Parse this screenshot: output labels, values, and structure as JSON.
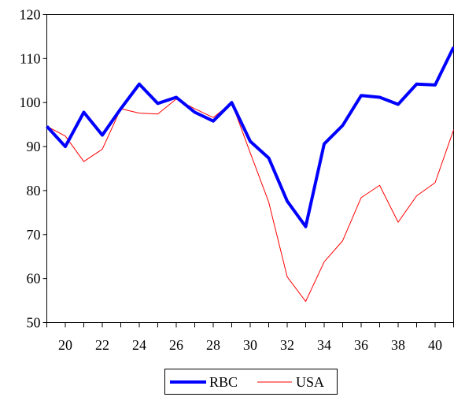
{
  "chart_data": {
    "type": "line",
    "title": "",
    "xlabel": "",
    "ylabel": "",
    "x": [
      19,
      20,
      21,
      22,
      23,
      24,
      25,
      26,
      27,
      28,
      29,
      30,
      31,
      32,
      33,
      34,
      35,
      36,
      37,
      38,
      39,
      40,
      41
    ],
    "xlim": [
      19,
      41
    ],
    "ylim": [
      50,
      120
    ],
    "xticks": [
      20,
      22,
      24,
      26,
      28,
      30,
      32,
      34,
      36,
      38,
      40
    ],
    "xtick_labels": [
      "20",
      "22",
      "24",
      "26",
      "28",
      "30",
      "32",
      "34",
      "36",
      "38",
      "40"
    ],
    "yticks": [
      50,
      60,
      70,
      80,
      90,
      100,
      110,
      120
    ],
    "ytick_labels": [
      "50",
      "60",
      "70",
      "80",
      "90",
      "100",
      "110",
      "120"
    ],
    "grid": false,
    "legend_position": "bottom-center",
    "series": [
      {
        "name": "RBC",
        "color": "#0000ff",
        "values": [
          94.6,
          90.0,
          97.8,
          92.6,
          98.6,
          104.2,
          99.8,
          101.2,
          97.8,
          95.8,
          100.0,
          91.2,
          87.4,
          77.6,
          71.8,
          90.6,
          94.8,
          101.6,
          101.2,
          99.6,
          104.2,
          104.0,
          112.6
        ]
      },
      {
        "name": "USA",
        "color": "#ff0000",
        "values": [
          94.6,
          92.4,
          86.6,
          89.4,
          98.6,
          97.6,
          97.4,
          100.8,
          98.6,
          96.6,
          100.0,
          88.6,
          77.4,
          60.4,
          54.8,
          63.8,
          68.6,
          78.4,
          81.2,
          72.8,
          78.8,
          81.8,
          93.8
        ]
      }
    ]
  }
}
